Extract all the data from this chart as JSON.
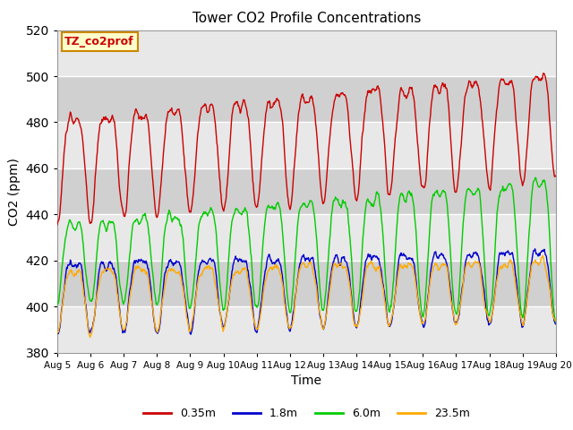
{
  "title": "Tower CO2 Profile Concentrations",
  "xlabel": "Time",
  "ylabel": "CO2 (ppm)",
  "ylim": [
    380,
    520
  ],
  "xlim": [
    0,
    15
  ],
  "annotation": "TZ_co2prof",
  "legend_labels": [
    "0.35m",
    "1.8m",
    "6.0m",
    "23.5m"
  ],
  "legend_colors": [
    "#cc0000",
    "#0000cc",
    "#00cc00",
    "#ffaa00"
  ],
  "x_tick_labels": [
    "Aug 5",
    "Aug 6",
    "Aug 7",
    "Aug 8",
    "Aug 9",
    "Aug 10",
    "Aug 11",
    "Aug 12",
    "Aug 13",
    "Aug 14",
    "Aug 15",
    "Aug 16",
    "Aug 17",
    "Aug 18",
    "Aug 19",
    "Aug 20"
  ],
  "plot_bg_light": "#e8e8e8",
  "plot_bg_dark": "#d0d0d0",
  "grid_color": "#ffffff",
  "yticks": [
    380,
    400,
    420,
    440,
    460,
    480,
    500,
    520
  ],
  "n_points": 960,
  "days": 15
}
